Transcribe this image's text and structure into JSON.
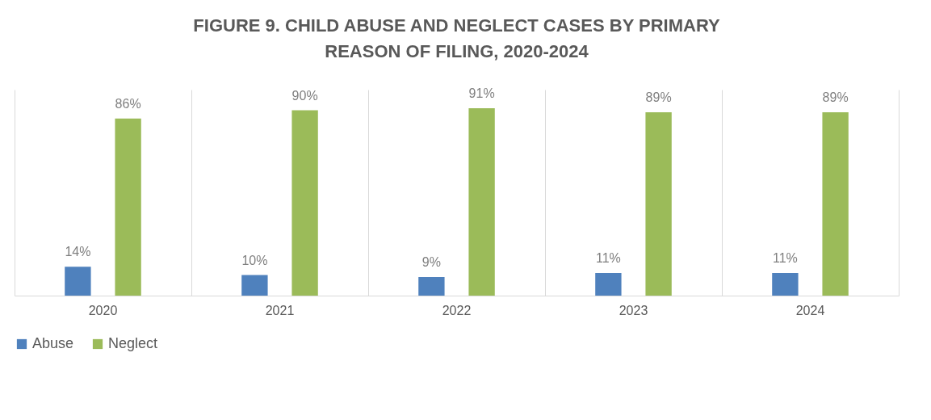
{
  "chart_data": {
    "type": "bar",
    "title": "FIGURE 9. CHILD ABUSE AND NEGLECT CASES BY PRIMARY REASON OF FILING, 2020-2024",
    "categories": [
      "2020",
      "2021",
      "2022",
      "2023",
      "2024"
    ],
    "series": [
      {
        "name": "Abuse",
        "color": "#4f81bd",
        "values": [
          14,
          10,
          9,
          11,
          11
        ],
        "value_labels": [
          "14%",
          "10%",
          "9%",
          "11%",
          "11%"
        ]
      },
      {
        "name": "Neglect",
        "color": "#9bbb59",
        "values": [
          86,
          90,
          91,
          89,
          89
        ],
        "value_labels": [
          "86%",
          "90%",
          "91%",
          "89%",
          "89%"
        ]
      }
    ],
    "grid": "x",
    "legend": "bottom"
  }
}
